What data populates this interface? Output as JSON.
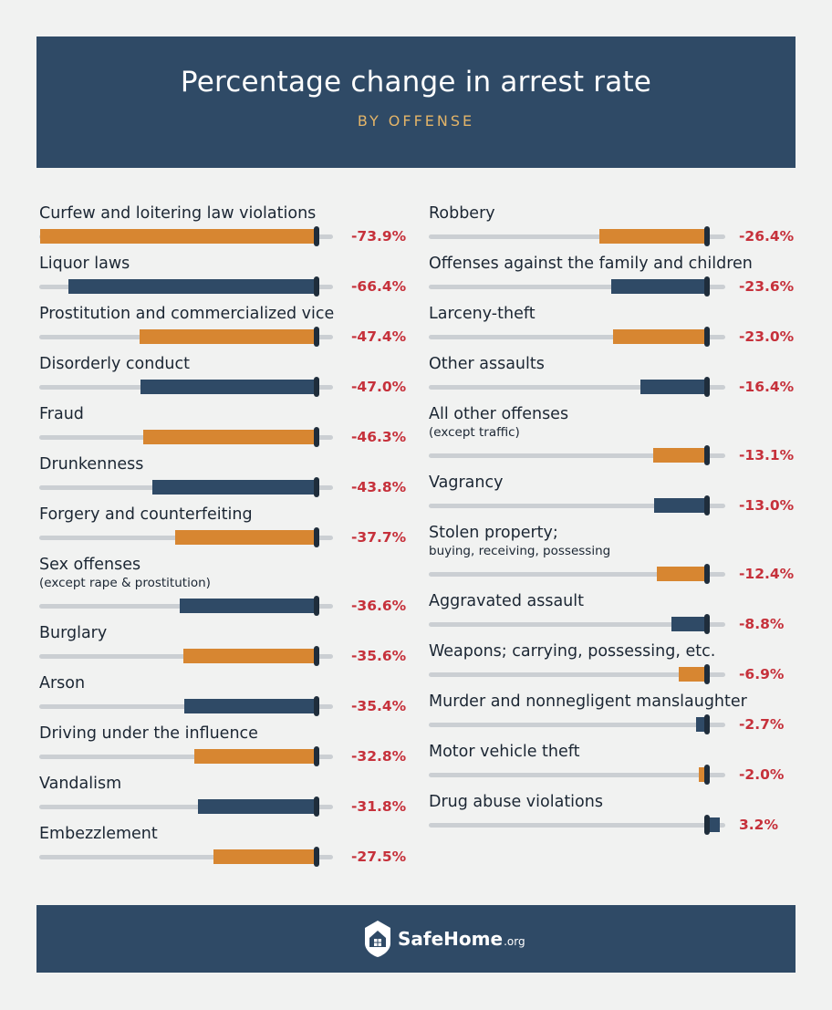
{
  "header": {
    "title": "Percentage change in arrest rate",
    "subtitle": "BY OFFENSE"
  },
  "footer": {
    "brand_name": "SafeHome",
    "brand_suffix": ".org"
  },
  "colors": {
    "header_bg": "#2f4a66",
    "orange": "#d78631",
    "blue": "#2f4a66",
    "negative_value": "#c6313b",
    "subtitle": "#e3b468"
  },
  "chart_data": {
    "type": "bar",
    "title": "Percentage change in arrest rate",
    "subtitle": "BY OFFENSE",
    "unit": "%",
    "series": [
      {
        "name": "",
        "items": [
          {
            "label": "Curfew and loitering law violations",
            "sublabel": "",
            "value": -73.9,
            "display": "-73.9%",
            "color": "orange"
          },
          {
            "label": "Liquor laws",
            "sublabel": "",
            "value": -66.4,
            "display": "-66.4%",
            "color": "blue"
          },
          {
            "label": "Prostitution and commercialized vice",
            "sublabel": "",
            "value": -47.4,
            "display": "-47.4%",
            "color": "orange"
          },
          {
            "label": "Disorderly conduct",
            "sublabel": "",
            "value": -47.0,
            "display": "-47.0%",
            "color": "blue"
          },
          {
            "label": "Fraud",
            "sublabel": "",
            "value": -46.3,
            "display": "-46.3%",
            "color": "orange"
          },
          {
            "label": "Drunkenness",
            "sublabel": "",
            "value": -43.8,
            "display": "-43.8%",
            "color": "blue"
          },
          {
            "label": "Forgery and counterfeiting",
            "sublabel": "",
            "value": -37.7,
            "display": "-37.7%",
            "color": "orange"
          },
          {
            "label": "Sex offenses",
            "sublabel": "(except rape & prostitution)",
            "value": -36.6,
            "display": "-36.6%",
            "color": "blue"
          },
          {
            "label": "Burglary",
            "sublabel": "",
            "value": -35.6,
            "display": "-35.6%",
            "color": "orange"
          },
          {
            "label": "Arson",
            "sublabel": "",
            "value": -35.4,
            "display": "-35.4%",
            "color": "blue"
          },
          {
            "label": "Driving under the influence",
            "sublabel": "",
            "value": -32.8,
            "display": "-32.8%",
            "color": "orange"
          },
          {
            "label": "Vandalism",
            "sublabel": "",
            "value": -31.8,
            "display": "-31.8%",
            "color": "blue"
          },
          {
            "label": "Embezzlement",
            "sublabel": "",
            "value": -27.5,
            "display": "-27.5%",
            "color": "orange"
          }
        ]
      },
      {
        "name": "",
        "items": [
          {
            "label": "Robbery",
            "sublabel": "",
            "value": -26.4,
            "display": "-26.4%",
            "color": "orange"
          },
          {
            "label": "Offenses against the family and children",
            "sublabel": "",
            "value": -23.6,
            "display": "-23.6%",
            "color": "blue"
          },
          {
            "label": "Larceny-theft",
            "sublabel": "",
            "value": -23.0,
            "display": "-23.0%",
            "color": "orange"
          },
          {
            "label": "Other assaults",
            "sublabel": "",
            "value": -16.4,
            "display": "-16.4%",
            "color": "blue"
          },
          {
            "label": "All other offenses",
            "sublabel": "(except traffic)",
            "value": -13.1,
            "display": "-13.1%",
            "color": "orange"
          },
          {
            "label": "Vagrancy",
            "sublabel": "",
            "value": -13.0,
            "display": "-13.0%",
            "color": "blue"
          },
          {
            "label": "Stolen property;",
            "sublabel": "buying, receiving, possessing",
            "value": -12.4,
            "display": "-12.4%",
            "color": "orange"
          },
          {
            "label": "Aggravated assault",
            "sublabel": "",
            "value": -8.8,
            "display": "-8.8%",
            "color": "blue"
          },
          {
            "label": "Weapons; carrying, possessing, etc.",
            "sublabel": "",
            "value": -6.9,
            "display": "-6.9%",
            "color": "orange"
          },
          {
            "label": "Murder and nonnegligent manslaughter",
            "sublabel": "",
            "value": -2.7,
            "display": "-2.7%",
            "color": "blue"
          },
          {
            "label": "Motor vehicle theft",
            "sublabel": "",
            "value": -2.0,
            "display": "-2.0%",
            "color": "orange"
          },
          {
            "label": "Drug abuse violations",
            "sublabel": "",
            "value": 3.2,
            "display": "3.2%",
            "color": "blue"
          }
        ]
      }
    ]
  }
}
